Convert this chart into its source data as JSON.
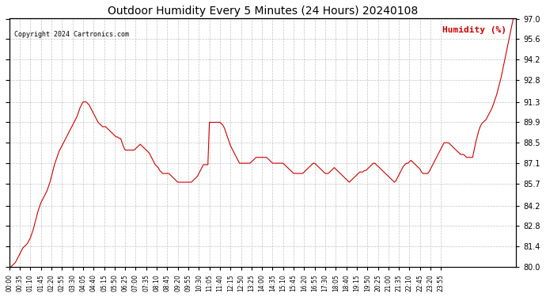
{
  "title": "Outdoor Humidity Every 5 Minutes (24 Hours) 20240108",
  "copyright": "Copyright 2024 Cartronics.com",
  "legend_label": "Humidity (%)",
  "ylabel_right": "Humidity (%)",
  "background_color": "#ffffff",
  "line_color": "#cc0000",
  "grid_color": "#aaaaaa",
  "title_color": "#000000",
  "copyright_color": "#000000",
  "legend_color": "#cc0000",
  "ylim": [
    80.0,
    97.0
  ],
  "yticks": [
    80.0,
    81.4,
    82.8,
    84.2,
    85.7,
    87.1,
    88.5,
    89.9,
    91.3,
    92.8,
    94.2,
    95.6,
    97.0
  ],
  "humidity_data": [
    80.0,
    80.0,
    80.1,
    80.2,
    80.3,
    80.5,
    80.7,
    80.9,
    81.1,
    81.3,
    81.4,
    81.5,
    81.6,
    81.8,
    82.0,
    82.3,
    82.6,
    83.0,
    83.4,
    83.8,
    84.1,
    84.4,
    84.6,
    84.8,
    85.0,
    85.2,
    85.5,
    85.8,
    86.2,
    86.6,
    87.0,
    87.3,
    87.6,
    87.9,
    88.1,
    88.3,
    88.5,
    88.7,
    88.9,
    89.1,
    89.3,
    89.5,
    89.7,
    89.9,
    90.1,
    90.3,
    90.6,
    90.9,
    91.1,
    91.3,
    91.3,
    91.3,
    91.2,
    91.1,
    90.9,
    90.7,
    90.5,
    90.3,
    90.1,
    89.9,
    89.8,
    89.7,
    89.6,
    89.6,
    89.6,
    89.5,
    89.4,
    89.3,
    89.2,
    89.1,
    89.0,
    88.9,
    88.9,
    88.8,
    88.8,
    88.5,
    88.2,
    88.0,
    88.0,
    88.0,
    88.0,
    88.0,
    88.0,
    88.0,
    88.1,
    88.2,
    88.3,
    88.4,
    88.3,
    88.2,
    88.1,
    88.0,
    87.9,
    87.8,
    87.6,
    87.4,
    87.2,
    87.0,
    86.9,
    86.8,
    86.6,
    86.5,
    86.4,
    86.4,
    86.4,
    86.4,
    86.4,
    86.3,
    86.2,
    86.1,
    86.0,
    85.9,
    85.8,
    85.8,
    85.8,
    85.8,
    85.8,
    85.8,
    85.8,
    85.8,
    85.8,
    85.8,
    85.9,
    86.0,
    86.1,
    86.2,
    86.4,
    86.6,
    86.8,
    87.0,
    87.0,
    87.0,
    87.0,
    89.9,
    89.9,
    89.9,
    89.9,
    89.9,
    89.9,
    89.9,
    89.9,
    89.8,
    89.7,
    89.5,
    89.2,
    88.9,
    88.6,
    88.3,
    88.1,
    87.9,
    87.7,
    87.5,
    87.3,
    87.1,
    87.1,
    87.1,
    87.1,
    87.1,
    87.1,
    87.1,
    87.1,
    87.2,
    87.3,
    87.4,
    87.5,
    87.5,
    87.5,
    87.5,
    87.5,
    87.5,
    87.5,
    87.5,
    87.4,
    87.3,
    87.2,
    87.1,
    87.1,
    87.1,
    87.1,
    87.1,
    87.1,
    87.1,
    87.1,
    87.0,
    86.9,
    86.8,
    86.7,
    86.6,
    86.5,
    86.4,
    86.4,
    86.4,
    86.4,
    86.4,
    86.4,
    86.4,
    86.5,
    86.6,
    86.7,
    86.8,
    86.9,
    87.0,
    87.1,
    87.1,
    87.0,
    86.9,
    86.8,
    86.7,
    86.6,
    86.5,
    86.4,
    86.4,
    86.4,
    86.5,
    86.6,
    86.7,
    86.8,
    86.7,
    86.6,
    86.5,
    86.4,
    86.3,
    86.2,
    86.1,
    86.0,
    85.9,
    85.8,
    85.9,
    86.0,
    86.1,
    86.2,
    86.3,
    86.4,
    86.5,
    86.5,
    86.5,
    86.6,
    86.6,
    86.7,
    86.8,
    86.9,
    87.0,
    87.1,
    87.1,
    87.0,
    86.9,
    86.8,
    86.7,
    86.6,
    86.5,
    86.4,
    86.3,
    86.2,
    86.1,
    86.0,
    85.9,
    85.8,
    85.9,
    86.1,
    86.3,
    86.5,
    86.7,
    86.9,
    87.0,
    87.1,
    87.1,
    87.2,
    87.3,
    87.2,
    87.1,
    87.0,
    86.9,
    86.8,
    86.7,
    86.5,
    86.4,
    86.4,
    86.4,
    86.4,
    86.5,
    86.7,
    86.9,
    87.1,
    87.3,
    87.5,
    87.7,
    87.9,
    88.1,
    88.3,
    88.5,
    88.5,
    88.5,
    88.5,
    88.4,
    88.3,
    88.2,
    88.1,
    88.0,
    87.9,
    87.8,
    87.7,
    87.7,
    87.7,
    87.6,
    87.5,
    87.5,
    87.5,
    87.5,
    87.5,
    88.0,
    88.5,
    88.9,
    89.3,
    89.6,
    89.8,
    89.9,
    90.0,
    90.1,
    90.3,
    90.5,
    90.7,
    90.9,
    91.2,
    91.5,
    91.8,
    92.2,
    92.6,
    93.0,
    93.5,
    94.0,
    94.5,
    95.0,
    95.5,
    96.0,
    96.5,
    97.0,
    97.0,
    97.0
  ]
}
